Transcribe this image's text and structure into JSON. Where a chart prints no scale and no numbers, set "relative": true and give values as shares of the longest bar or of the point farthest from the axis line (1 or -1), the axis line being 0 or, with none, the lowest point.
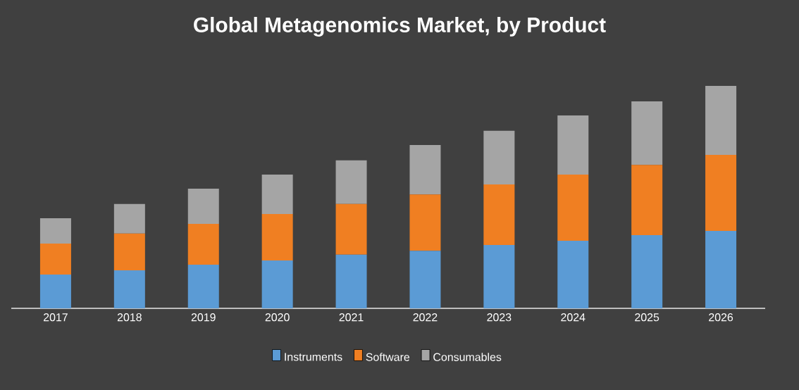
{
  "chart_data": {
    "type": "bar",
    "title": "Global Metagenomics Market, by Product",
    "stacked": true,
    "relative": true,
    "legend": "bottom",
    "categories": [
      "2017",
      "2018",
      "2019",
      "2020",
      "2021",
      "2022",
      "2023",
      "2024",
      "2025",
      "2026"
    ],
    "series": [
      {
        "name": "Instruments",
        "color": "#5b9bd5",
        "values": [
          0.152,
          0.171,
          0.196,
          0.215,
          0.241,
          0.259,
          0.285,
          0.304,
          0.329,
          0.348
        ]
      },
      {
        "name": "Software",
        "color": "#f07f22",
        "values": [
          0.139,
          0.165,
          0.184,
          0.209,
          0.228,
          0.253,
          0.272,
          0.297,
          0.316,
          0.342
        ]
      },
      {
        "name": "Consumables",
        "color": "#a5a5a5",
        "values": [
          0.114,
          0.133,
          0.158,
          0.177,
          0.196,
          0.222,
          0.241,
          0.266,
          0.285,
          0.31
        ]
      }
    ]
  }
}
